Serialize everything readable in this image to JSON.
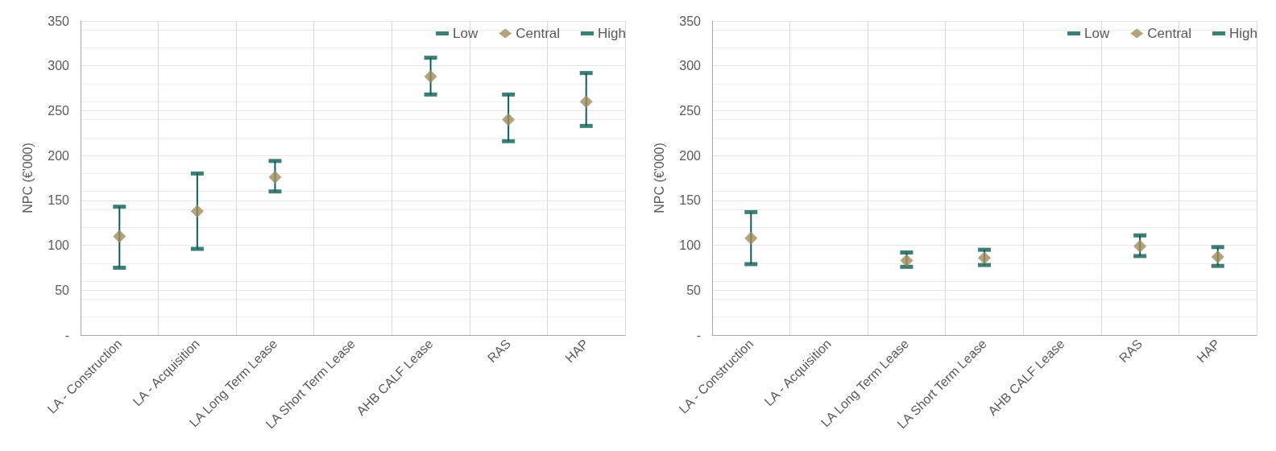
{
  "chart_data": [
    {
      "type": "scatter",
      "ylabel": "NPC (€'000)",
      "categories": [
        "LA - Construction",
        "LA - Acquisition",
        "LA Long Term Lease",
        "LA Short Term Lease",
        "AHB CALF Lease",
        "RAS",
        "HAP"
      ],
      "ylim": [
        0,
        350
      ],
      "yticks": [
        {
          "value": 0,
          "label": "-"
        },
        50,
        100,
        150,
        200,
        250,
        300,
        350
      ],
      "grid": true,
      "legend": "top right",
      "series": [
        {
          "name": "Low",
          "color": "#0e5e55",
          "marker": "square",
          "values": [
            75,
            96,
            160,
            null,
            268,
            216,
            233
          ]
        },
        {
          "name": "Central",
          "color": "#a08c5c",
          "marker": "diamond",
          "values": [
            110,
            138,
            176,
            null,
            288,
            240,
            260
          ]
        },
        {
          "name": "High",
          "color": "#0e5e55",
          "marker": "square",
          "values": [
            143,
            180,
            194,
            null,
            309,
            268,
            292
          ]
        }
      ]
    },
    {
      "type": "scatter",
      "ylabel": "NPC (€'000)",
      "categories": [
        "LA - Construction",
        "LA - Acquisition",
        "LA Long Term Lease",
        "LA Short Term Lease",
        "AHB CALF Lease",
        "RAS",
        "HAP"
      ],
      "ylim": [
        0,
        350
      ],
      "yticks": [
        {
          "value": 0,
          "label": "-"
        },
        50,
        100,
        150,
        200,
        250,
        300,
        350
      ],
      "grid": true,
      "legend": "top right",
      "series": [
        {
          "name": "Low",
          "color": "#0e5e55",
          "marker": "square",
          "values": [
            79,
            null,
            76,
            78,
            null,
            88,
            77
          ]
        },
        {
          "name": "Central",
          "color": "#a08c5c",
          "marker": "diamond",
          "values": [
            108,
            null,
            83,
            86,
            null,
            99,
            87
          ]
        },
        {
          "name": "High",
          "color": "#0e5e55",
          "marker": "square",
          "values": [
            137,
            null,
            92,
            95,
            null,
            111,
            98
          ]
        }
      ]
    }
  ]
}
